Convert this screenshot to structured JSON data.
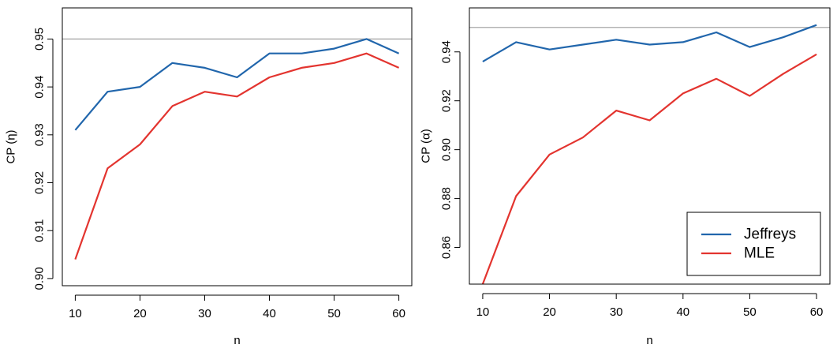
{
  "colors": {
    "jeffreys": "#2166ac",
    "mle": "#e3342f",
    "reference": "#a8a8a8",
    "axis": "#000000"
  },
  "chart_data": [
    {
      "type": "line",
      "xlabel": "n",
      "ylabel": "CP (η)",
      "x": [
        10,
        15,
        20,
        25,
        30,
        35,
        40,
        45,
        50,
        55,
        60
      ],
      "xticks": [
        "10",
        "20",
        "30",
        "40",
        "50",
        "60"
      ],
      "xtick_values": [
        10,
        20,
        30,
        40,
        50,
        60
      ],
      "yticks": [
        "0.90",
        "0.91",
        "0.92",
        "0.93",
        "0.94",
        "0.95"
      ],
      "ytick_values": [
        0.9,
        0.91,
        0.92,
        0.93,
        0.94,
        0.95
      ],
      "xlim": [
        8,
        62
      ],
      "ylim": [
        0.8985,
        0.9565
      ],
      "reference_line": 0.95,
      "grid": false,
      "series": [
        {
          "name": "Jeffreys",
          "color": "#2166ac",
          "values": [
            0.931,
            0.939,
            0.94,
            0.945,
            0.944,
            0.942,
            0.947,
            0.947,
            0.948,
            0.95,
            0.947
          ]
        },
        {
          "name": "MLE",
          "color": "#e3342f",
          "values": [
            0.904,
            0.923,
            0.928,
            0.936,
            0.939,
            0.938,
            0.942,
            0.944,
            0.945,
            0.947,
            0.944
          ]
        }
      ]
    },
    {
      "type": "line",
      "xlabel": "n",
      "ylabel": "CP (α)",
      "x": [
        10,
        15,
        20,
        25,
        30,
        35,
        40,
        45,
        50,
        55,
        60
      ],
      "xticks": [
        "10",
        "20",
        "30",
        "40",
        "50",
        "60"
      ],
      "xtick_values": [
        10,
        20,
        30,
        40,
        50,
        60
      ],
      "yticks": [
        "0.86",
        "0.88",
        "0.90",
        "0.92",
        "0.94"
      ],
      "ytick_values": [
        0.86,
        0.88,
        0.9,
        0.92,
        0.94
      ],
      "xlim": [
        8,
        62
      ],
      "ylim": [
        0.845,
        0.958
      ],
      "reference_line": 0.95,
      "grid": false,
      "legend_position": "bottom-right",
      "series": [
        {
          "name": "Jeffreys",
          "color": "#2166ac",
          "values": [
            0.936,
            0.944,
            0.941,
            0.943,
            0.945,
            0.943,
            0.944,
            0.948,
            0.942,
            0.946,
            0.951
          ]
        },
        {
          "name": "MLE",
          "color": "#e3342f",
          "values": [
            0.845,
            0.881,
            0.898,
            0.905,
            0.916,
            0.912,
            0.923,
            0.929,
            0.922,
            0.931,
            0.939
          ]
        }
      ]
    }
  ]
}
